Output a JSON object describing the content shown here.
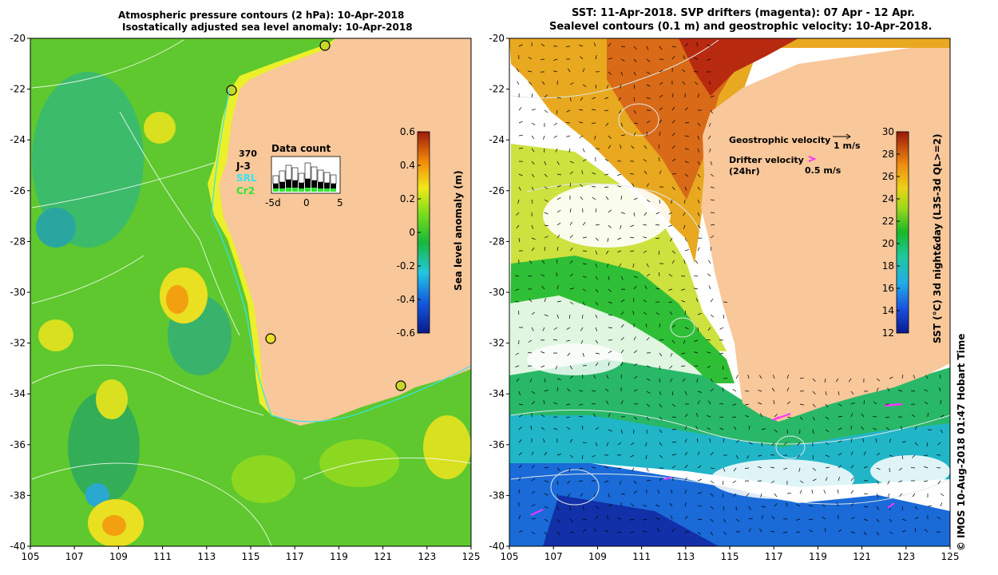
{
  "left_panel": {
    "title_line1": "Atmospheric pressure contours (2 hPa): 10-Apr-2018",
    "title_line2": "Isostatically adjusted sea level anomaly: 10-Apr-2018",
    "lat_ticks": [
      "-20",
      "-22",
      "-24",
      "-26",
      "-28",
      "-30",
      "-32",
      "-34",
      "-36",
      "-38",
      "-40"
    ],
    "lon_ticks": [
      "105",
      "107",
      "109",
      "111",
      "113",
      "115",
      "117",
      "119",
      "121",
      "123",
      "125"
    ],
    "colorbar_label": "Sea level anomaly (m)",
    "colorbar_ticks": [
      "0.6",
      "0.4",
      "0.2",
      "0",
      "-0.2",
      "-0.4",
      "-0.6"
    ],
    "data_count": {
      "title": "Data count",
      "count_value": "370",
      "legend": [
        "J-3",
        "SRL",
        "Cr2"
      ],
      "x_ticks": [
        "-5d",
        "0",
        "5"
      ],
      "legend_colors": {
        "J-3": "#000000",
        "SRL": "#33e5f2",
        "Cr2": "#33e533"
      }
    }
  },
  "right_panel": {
    "title_line1": "SST: 11-Apr-2018. SVP drifters (magenta): 07 Apr - 12 Apr.",
    "title_line2": "Sealevel contours (0.1 m) and geostrophic velocity: 10-Apr-2018.",
    "lat_ticks": [
      "-20",
      "-22",
      "-24",
      "-26",
      "-28",
      "-30",
      "-32",
      "-34",
      "-36",
      "-38",
      "-40"
    ],
    "lon_ticks": [
      "105",
      "107",
      "109",
      "111",
      "113",
      "115",
      "117",
      "119",
      "121",
      "123",
      "125"
    ],
    "colorbar_label": "SST (°C) 3d night&day (L3S-3d QL>=2)",
    "colorbar_ticks": [
      "30",
      "28",
      "26",
      "24",
      "22",
      "20",
      "18",
      "16",
      "14",
      "12"
    ],
    "geostrophic_label": "Geostrophic velocity",
    "geostrophic_scale": "1 m/s",
    "drifter_label": "Drifter velocity",
    "drifter_sub": "(24hr)",
    "drifter_scale": "0.5 m/s",
    "credit": "© IMOS 10-Aug-2018 01:47 Hobart Time"
  },
  "colors": {
    "land": "#f8c79a",
    "drifter": "#ff33ff"
  }
}
